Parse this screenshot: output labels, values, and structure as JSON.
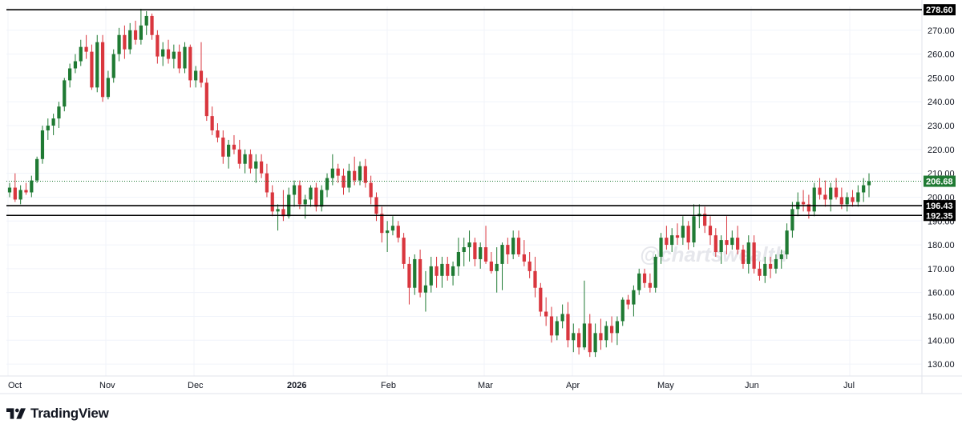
{
  "chart_data": {
    "type": "candlestick",
    "x_labels": [
      "Oct",
      "Nov",
      "Dec",
      "2026",
      "Feb",
      "Mar",
      "Apr",
      "May",
      "Jun",
      "Jul"
    ],
    "ylim": [
      125,
      280
    ],
    "y_ticks": [
      "130.00",
      "140.00",
      "150.00",
      "160.00",
      "170.00",
      "180.00",
      "190.00",
      "200.00",
      "210.00",
      "220.00",
      "230.00",
      "240.00",
      "250.00",
      "260.00",
      "270.00"
    ],
    "horizontal_lines": [
      {
        "value": 278.6,
        "label": "278.60"
      },
      {
        "value": 196.43,
        "label": "196.43"
      },
      {
        "value": 192.35,
        "label": "192.35"
      }
    ],
    "last_price": {
      "value": 206.68,
      "label": "206.68"
    },
    "watermark": "@chartswealth",
    "up_color": "#1f7a33",
    "down_color": "#d9363e",
    "candles": [
      [
        202,
        206,
        200,
        204
      ],
      [
        204,
        210,
        198,
        199
      ],
      [
        199,
        205,
        197,
        203
      ],
      [
        203,
        206,
        201,
        202
      ],
      [
        202,
        209,
        200,
        207
      ],
      [
        207,
        217,
        206,
        216
      ],
      [
        216,
        230,
        214,
        228
      ],
      [
        228,
        233,
        224,
        230
      ],
      [
        230,
        235,
        226,
        233
      ],
      [
        233,
        240,
        229,
        238
      ],
      [
        238,
        250,
        236,
        249
      ],
      [
        249,
        256,
        246,
        254
      ],
      [
        254,
        260,
        252,
        257
      ],
      [
        257,
        266,
        255,
        263
      ],
      [
        263,
        268,
        258,
        261
      ],
      [
        261,
        264,
        245,
        246
      ],
      [
        246,
        268,
        244,
        265
      ],
      [
        265,
        268,
        240,
        242
      ],
      [
        242,
        253,
        241,
        250
      ],
      [
        250,
        262,
        248,
        260
      ],
      [
        260,
        271,
        257,
        268
      ],
      [
        268,
        272,
        258,
        262
      ],
      [
        262,
        273,
        260,
        270
      ],
      [
        270,
        274,
        264,
        266
      ],
      [
        266,
        279,
        264,
        272
      ],
      [
        272,
        278,
        268,
        276
      ],
      [
        276,
        277,
        266,
        268
      ],
      [
        268,
        270,
        256,
        259
      ],
      [
        259,
        265,
        255,
        262
      ],
      [
        262,
        266,
        256,
        258
      ],
      [
        258,
        264,
        254,
        261
      ],
      [
        261,
        264,
        252,
        254
      ],
      [
        254,
        265,
        252,
        263
      ],
      [
        263,
        264,
        246,
        249
      ],
      [
        249,
        255,
        246,
        253
      ],
      [
        253,
        265,
        246,
        248
      ],
      [
        248,
        250,
        232,
        234
      ],
      [
        234,
        238,
        226,
        228
      ],
      [
        228,
        231,
        223,
        225
      ],
      [
        225,
        228,
        214,
        217
      ],
      [
        217,
        224,
        212,
        222
      ],
      [
        222,
        226,
        218,
        220
      ],
      [
        220,
        224,
        212,
        214
      ],
      [
        214,
        220,
        210,
        218
      ],
      [
        218,
        220,
        210,
        212
      ],
      [
        212,
        218,
        206,
        215
      ],
      [
        215,
        218,
        208,
        210
      ],
      [
        210,
        214,
        200,
        202
      ],
      [
        202,
        205,
        192,
        194
      ],
      [
        194,
        197,
        186,
        195
      ],
      [
        195,
        203,
        190,
        192
      ],
      [
        192,
        204,
        191,
        201
      ],
      [
        201,
        207,
        196,
        205
      ],
      [
        205,
        207,
        195,
        197
      ],
      [
        197,
        201,
        191,
        199
      ],
      [
        199,
        205,
        196,
        204
      ],
      [
        204,
        206,
        194,
        196
      ],
      [
        196,
        205,
        194,
        203
      ],
      [
        203,
        210,
        200,
        208
      ],
      [
        208,
        218,
        205,
        212
      ],
      [
        212,
        214,
        206,
        209
      ],
      [
        209,
        212,
        201,
        204
      ],
      [
        204,
        214,
        202,
        211
      ],
      [
        211,
        217,
        205,
        207
      ],
      [
        207,
        215,
        205,
        213
      ],
      [
        213,
        216,
        204,
        206
      ],
      [
        206,
        209,
        197,
        200
      ],
      [
        200,
        202,
        190,
        193
      ],
      [
        193,
        196,
        181,
        185
      ],
      [
        185,
        190,
        177,
        186
      ],
      [
        186,
        192,
        184,
        188
      ],
      [
        188,
        190,
        181,
        183
      ],
      [
        183,
        185,
        170,
        172
      ],
      [
        172,
        175,
        155,
        162
      ],
      [
        162,
        176,
        159,
        174
      ],
      [
        174,
        178,
        158,
        160
      ],
      [
        160,
        169,
        152,
        163
      ],
      [
        163,
        175,
        160,
        171
      ],
      [
        171,
        175,
        162,
        167
      ],
      [
        167,
        175,
        162,
        172
      ],
      [
        172,
        175,
        165,
        167
      ],
      [
        167,
        173,
        163,
        171
      ],
      [
        171,
        183,
        167,
        177
      ],
      [
        177,
        183,
        171,
        179
      ],
      [
        179,
        186,
        173,
        181
      ],
      [
        181,
        183,
        171,
        174
      ],
      [
        174,
        181,
        170,
        179
      ],
      [
        179,
        188,
        172,
        173
      ],
      [
        173,
        177,
        168,
        169
      ],
      [
        169,
        179,
        160,
        172
      ],
      [
        172,
        181,
        161,
        180
      ],
      [
        180,
        183,
        172,
        176
      ],
      [
        176,
        186,
        174,
        183
      ],
      [
        183,
        186,
        175,
        176
      ],
      [
        176,
        182,
        171,
        173
      ],
      [
        173,
        177,
        166,
        169
      ],
      [
        169,
        175,
        158,
        162
      ],
      [
        162,
        164,
        150,
        152
      ],
      [
        152,
        158,
        146,
        150
      ],
      [
        150,
        154,
        139,
        142
      ],
      [
        142,
        150,
        140,
        148
      ],
      [
        148,
        155,
        145,
        151
      ],
      [
        151,
        156,
        137,
        140
      ],
      [
        140,
        147,
        135,
        143
      ],
      [
        143,
        145,
        134,
        137
      ],
      [
        137,
        165,
        136,
        147
      ],
      [
        147,
        151,
        133,
        135
      ],
      [
        135,
        147,
        133,
        143
      ],
      [
        143,
        149,
        136,
        140
      ],
      [
        140,
        148,
        137,
        146
      ],
      [
        146,
        150,
        139,
        143
      ],
      [
        143,
        150,
        138,
        148
      ],
      [
        148,
        158,
        146,
        157
      ],
      [
        157,
        159,
        153,
        155
      ],
      [
        155,
        163,
        150,
        161
      ],
      [
        161,
        170,
        159,
        168
      ],
      [
        168,
        170,
        162,
        164
      ],
      [
        164,
        168,
        160,
        162
      ],
      [
        162,
        176,
        160,
        175
      ],
      [
        175,
        185,
        172,
        183
      ],
      [
        183,
        188,
        178,
        180
      ],
      [
        180,
        187,
        177,
        184
      ],
      [
        184,
        189,
        180,
        183
      ],
      [
        183,
        192,
        180,
        188
      ],
      [
        188,
        190,
        178,
        181
      ],
      [
        181,
        197,
        179,
        192
      ],
      [
        192,
        197,
        187,
        193
      ],
      [
        193,
        196,
        185,
        188
      ],
      [
        188,
        192,
        180,
        184
      ],
      [
        184,
        187,
        175,
        177
      ],
      [
        177,
        184,
        172,
        182
      ],
      [
        182,
        192,
        176,
        180
      ],
      [
        180,
        186,
        178,
        183
      ],
      [
        183,
        188,
        176,
        178
      ],
      [
        178,
        180,
        170,
        172
      ],
      [
        172,
        184,
        168,
        181
      ],
      [
        181,
        184,
        168,
        170
      ],
      [
        170,
        173,
        165,
        167
      ],
      [
        167,
        175,
        164,
        172
      ],
      [
        172,
        175,
        166,
        170
      ],
      [
        170,
        176,
        168,
        174
      ],
      [
        174,
        178,
        170,
        176
      ],
      [
        176,
        189,
        174,
        186
      ],
      [
        186,
        198,
        183,
        195
      ],
      [
        195,
        202,
        192,
        198
      ],
      [
        198,
        203,
        194,
        197
      ],
      [
        197,
        201,
        191,
        194
      ],
      [
        194,
        206,
        192,
        204
      ],
      [
        204,
        208,
        199,
        201
      ],
      [
        201,
        207,
        196,
        199
      ],
      [
        199,
        206,
        194,
        204
      ],
      [
        204,
        208,
        199,
        200
      ],
      [
        200,
        204,
        195,
        197
      ],
      [
        197,
        202,
        194,
        200
      ],
      [
        200,
        203,
        196,
        198
      ],
      [
        198,
        205,
        196,
        202
      ],
      [
        202,
        208,
        198,
        205
      ],
      [
        205,
        210,
        200,
        206.68
      ]
    ]
  },
  "footer": {
    "brand": "TradingView"
  }
}
